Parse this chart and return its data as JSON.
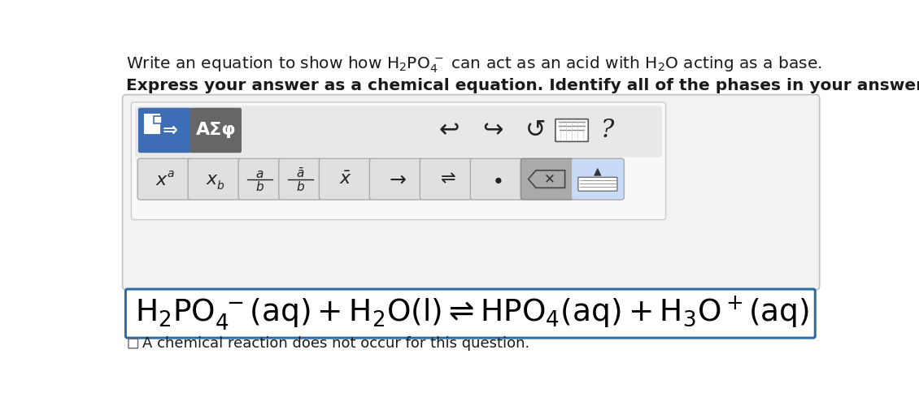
{
  "bg_color": "#ffffff",
  "title_line1_plain": "Write an equation to show how ",
  "title_line1_chem": "H₂PO₄⁻",
  "title_line1_rest": " can act as an acid with H₂O acting as a base.",
  "title_line2": "Express your answer as a chemical equation. Identify all of the phases in your answer.",
  "checkbox_text": "A chemical reaction does not occur for this question.",
  "toolbar_bg": "#e0e0e0",
  "panel_bg": "#f2f2f2",
  "panel_border": "#c0c0c0",
  "inner_panel_bg": "#e8e8e8",
  "inner_panel_border": "#cccccc",
  "eq_box_border": "#2e6da4",
  "eq_box_bg": "#ffffff",
  "blue_btn_color1": "#3d6db5",
  "blue_btn_color2": "#5580c8",
  "gray_btn_color1": "#666666",
  "gray_btn_color2": "#888888",
  "light_btn_color": "#e0e0e0",
  "light_btn_border": "#aaaaaa",
  "backspace_btn_color": "#aaaaaa",
  "light_blue_btn": "#c8daf5",
  "icon_color": "#222222"
}
